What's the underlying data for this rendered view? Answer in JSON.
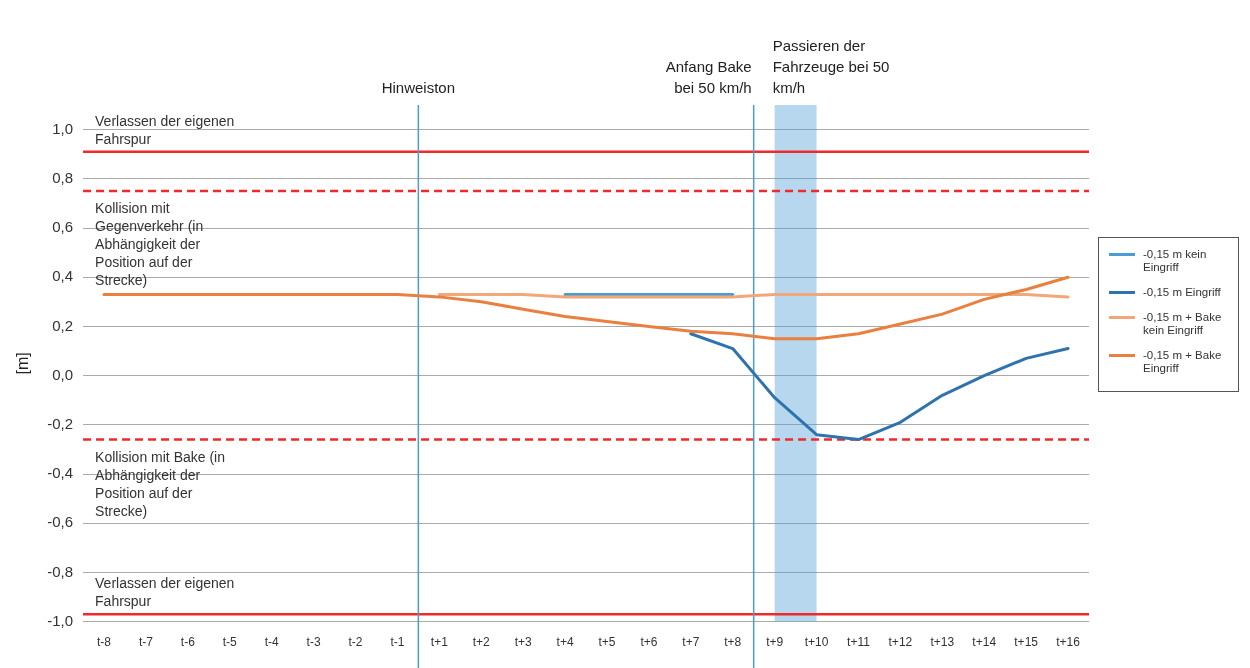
{
  "chart_data": {
    "type": "line",
    "ylabel": "[m]",
    "categories": [
      "t-8",
      "t-7",
      "t-6",
      "t-5",
      "t-4",
      "t-3",
      "t-2",
      "t-1",
      "t+1",
      "t+2",
      "t+3",
      "t+4",
      "t+5",
      "t+6",
      "t+7",
      "t+8",
      "t+9",
      "t+10",
      "t+11",
      "t+12",
      "t+13",
      "t+14",
      "t+15",
      "t+16"
    ],
    "series": [
      {
        "name": "-0,15 m kein Eingriff",
        "color": "#4a9bd6",
        "values": [
          null,
          null,
          null,
          null,
          null,
          null,
          null,
          null,
          null,
          null,
          null,
          0.33,
          0.33,
          0.33,
          0.33,
          0.33,
          null,
          null,
          null,
          null,
          null,
          null,
          null,
          null
        ]
      },
      {
        "name": "-0,15 m Eingriff",
        "color": "#2f73ad",
        "values": [
          null,
          null,
          null,
          null,
          null,
          null,
          null,
          null,
          null,
          null,
          null,
          null,
          null,
          null,
          0.17,
          0.11,
          -0.09,
          -0.24,
          -0.26,
          -0.19,
          -0.08,
          0.0,
          0.07,
          0.11
        ]
      },
      {
        "name": "-0,15 m + Bake kein Eingriff",
        "color": "#f2a77a",
        "values": [
          null,
          null,
          null,
          null,
          null,
          null,
          null,
          null,
          0.33,
          0.33,
          0.33,
          0.32,
          0.32,
          0.32,
          0.32,
          0.32,
          0.33,
          0.33,
          0.33,
          0.33,
          0.33,
          0.33,
          0.33,
          0.32
        ]
      },
      {
        "name": "-0,15 m + Bake Eingriff",
        "color": "#e9803f",
        "values": [
          0.33,
          0.33,
          0.33,
          0.33,
          0.33,
          0.33,
          0.33,
          0.33,
          0.32,
          0.3,
          0.27,
          0.24,
          0.22,
          0.2,
          0.18,
          0.17,
          0.15,
          0.15,
          0.17,
          0.21,
          0.25,
          0.31,
          0.35,
          0.4
        ]
      }
    ],
    "ylim": [
      -1,
      1.1
    ],
    "yticks": [
      {
        "value": -1,
        "label": "-1,0"
      },
      {
        "value": -0.8,
        "label": "-0,8"
      },
      {
        "value": -0.6,
        "label": "-0,6"
      },
      {
        "value": -0.4,
        "label": "-0,4"
      },
      {
        "value": -0.2,
        "label": "-0,2"
      },
      {
        "value": 0,
        "label": "0,0"
      },
      {
        "value": 0.2,
        "label": "0,2"
      },
      {
        "value": 0.4,
        "label": "0,4"
      },
      {
        "value": 0.6,
        "label": "0,6"
      },
      {
        "value": 0.8,
        "label": "0,8"
      },
      {
        "value": 1,
        "label": "1,0"
      }
    ],
    "grid": "y",
    "legend": "right",
    "marker": "none",
    "line_style": "solid",
    "ref_lines": [
      {
        "axis": "y",
        "value": 0.91,
        "label": "Verlassen der eigenen Fahrspur",
        "color": "#ee2a2a",
        "line_style": "solid"
      },
      {
        "axis": "y",
        "value": 0.75,
        "label": "Kollision mit Gegenverkehr (in Abhängigkeit der Position auf der Strecke)",
        "color": "#ee2a2a",
        "line_style": "dashed"
      },
      {
        "axis": "y",
        "value": -0.26,
        "label": "Kollision mit Bake (in Abhängigkeit der Position auf der Strecke)",
        "color": "#ee2a2a",
        "line_style": "dashed"
      },
      {
        "axis": "y",
        "value": -0.97,
        "label": "Verlassen der eigenen Fahrspur",
        "color": "#ee2a2a",
        "line_style": "solid"
      },
      {
        "axis": "x",
        "value": "t+1",
        "label": "Hinweiston",
        "color": "#4a9bd6",
        "line_style": "solid"
      },
      {
        "axis": "x",
        "value": "t+9",
        "label": "Anfang Bake bei 50 km/h",
        "color": "#4a9bd6",
        "line_style": "solid"
      }
    ],
    "bands": [
      {
        "axis": "x",
        "from": "t+9",
        "to": "t+10",
        "label": "Passieren der Fahrzeuge bei 50 km/h",
        "color": "#4a9bd6"
      }
    ]
  }
}
